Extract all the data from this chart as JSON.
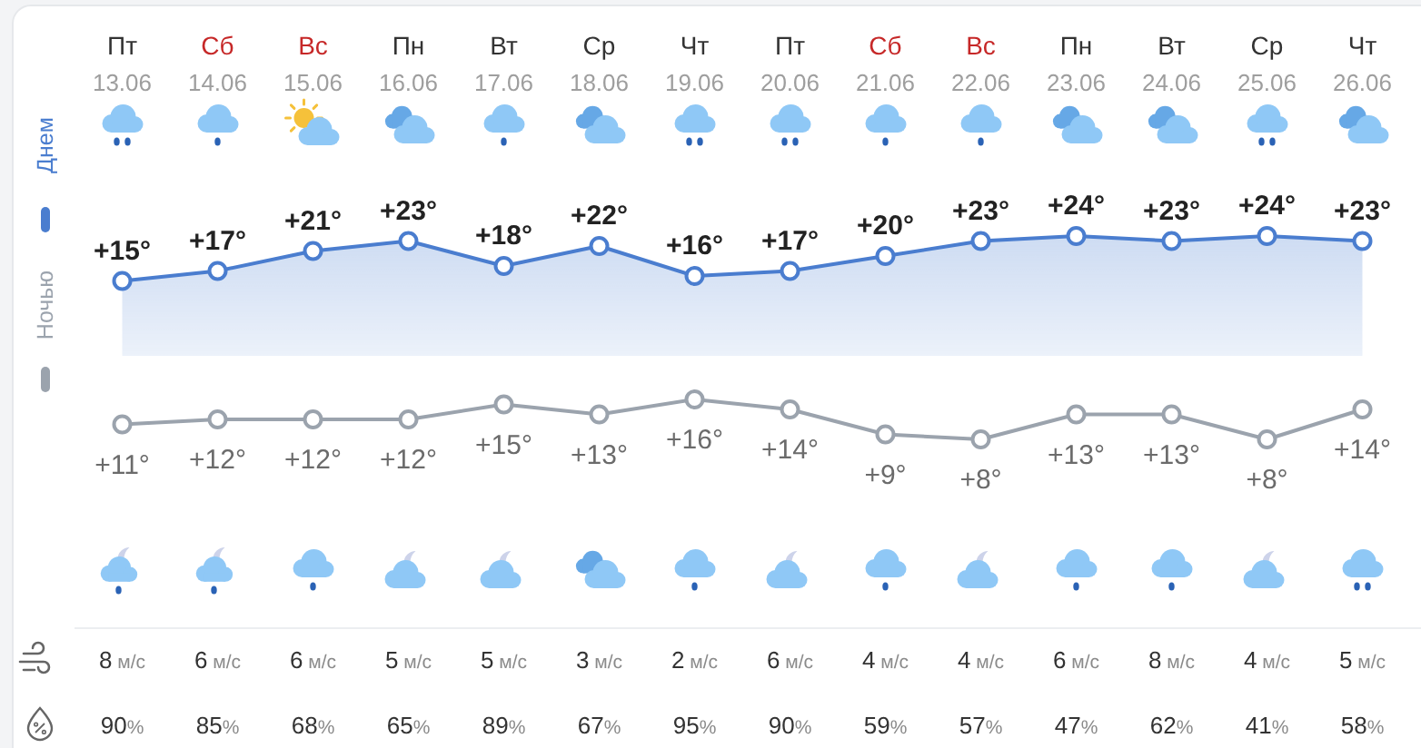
{
  "chart_data": [
    {
      "type": "area",
      "categories": [
        "Пт\n13.06",
        "Сб\n14.06",
        "Вс\n15.06",
        "Пн\n16.06",
        "Вт\n17.06",
        "Ср\n18.06",
        "Чт\n19.06",
        "Пт\n20.06",
        "Сб\n21.06",
        "Вс\n22.06",
        "Пн\n23.06",
        "Вт\n24.06",
        "Ср\n25.06",
        "Чт\n26.06"
      ],
      "series": [
        {
          "name": "Днем",
          "color": "#4a7dcf",
          "values": [
            15,
            17,
            21,
            23,
            18,
            22,
            16,
            17,
            20,
            23,
            24,
            23,
            24,
            23
          ],
          "value_labels": [
            "+15°",
            "+17°",
            "+21°",
            "+23°",
            "+18°",
            "+22°",
            "+16°",
            "+17°",
            "+20°",
            "+23°",
            "+24°",
            "+23°",
            "+24°",
            "+23°"
          ]
        }
      ],
      "tick_labels": "x",
      "marker": "circle",
      "legend": "left"
    },
    {
      "type": "line",
      "series": [
        {
          "name": "Ночью",
          "color": "#9ba3ad",
          "values": [
            11,
            12,
            12,
            12,
            15,
            13,
            16,
            14,
            9,
            8,
            13,
            13,
            8,
            14
          ],
          "value_labels": [
            "+11°",
            "+12°",
            "+12°",
            "+12°",
            "+15°",
            "+13°",
            "+16°",
            "+14°",
            "+9°",
            "+8°",
            "+13°",
            "+13°",
            "+8°",
            "+14°"
          ]
        }
      ],
      "tick_labels": false,
      "marker": "circle",
      "legend": "left"
    },
    {
      "type": "other",
      "annotations": [
        "8 м/с",
        "6 м/с",
        "6 м/с",
        "5 м/с",
        "5 м/с",
        "3 м/с",
        "2 м/с",
        "6 м/с",
        "4 м/с",
        "4 м/с",
        "6 м/с",
        "8 м/с",
        "4 м/с",
        "5 м/с",
        "90%",
        "85%",
        "68%",
        "65%",
        "89%",
        "67%",
        "95%",
        "90%",
        "59%",
        "57%",
        "47%",
        "62%",
        "41%",
        "58%"
      ]
    }
  ]
}
